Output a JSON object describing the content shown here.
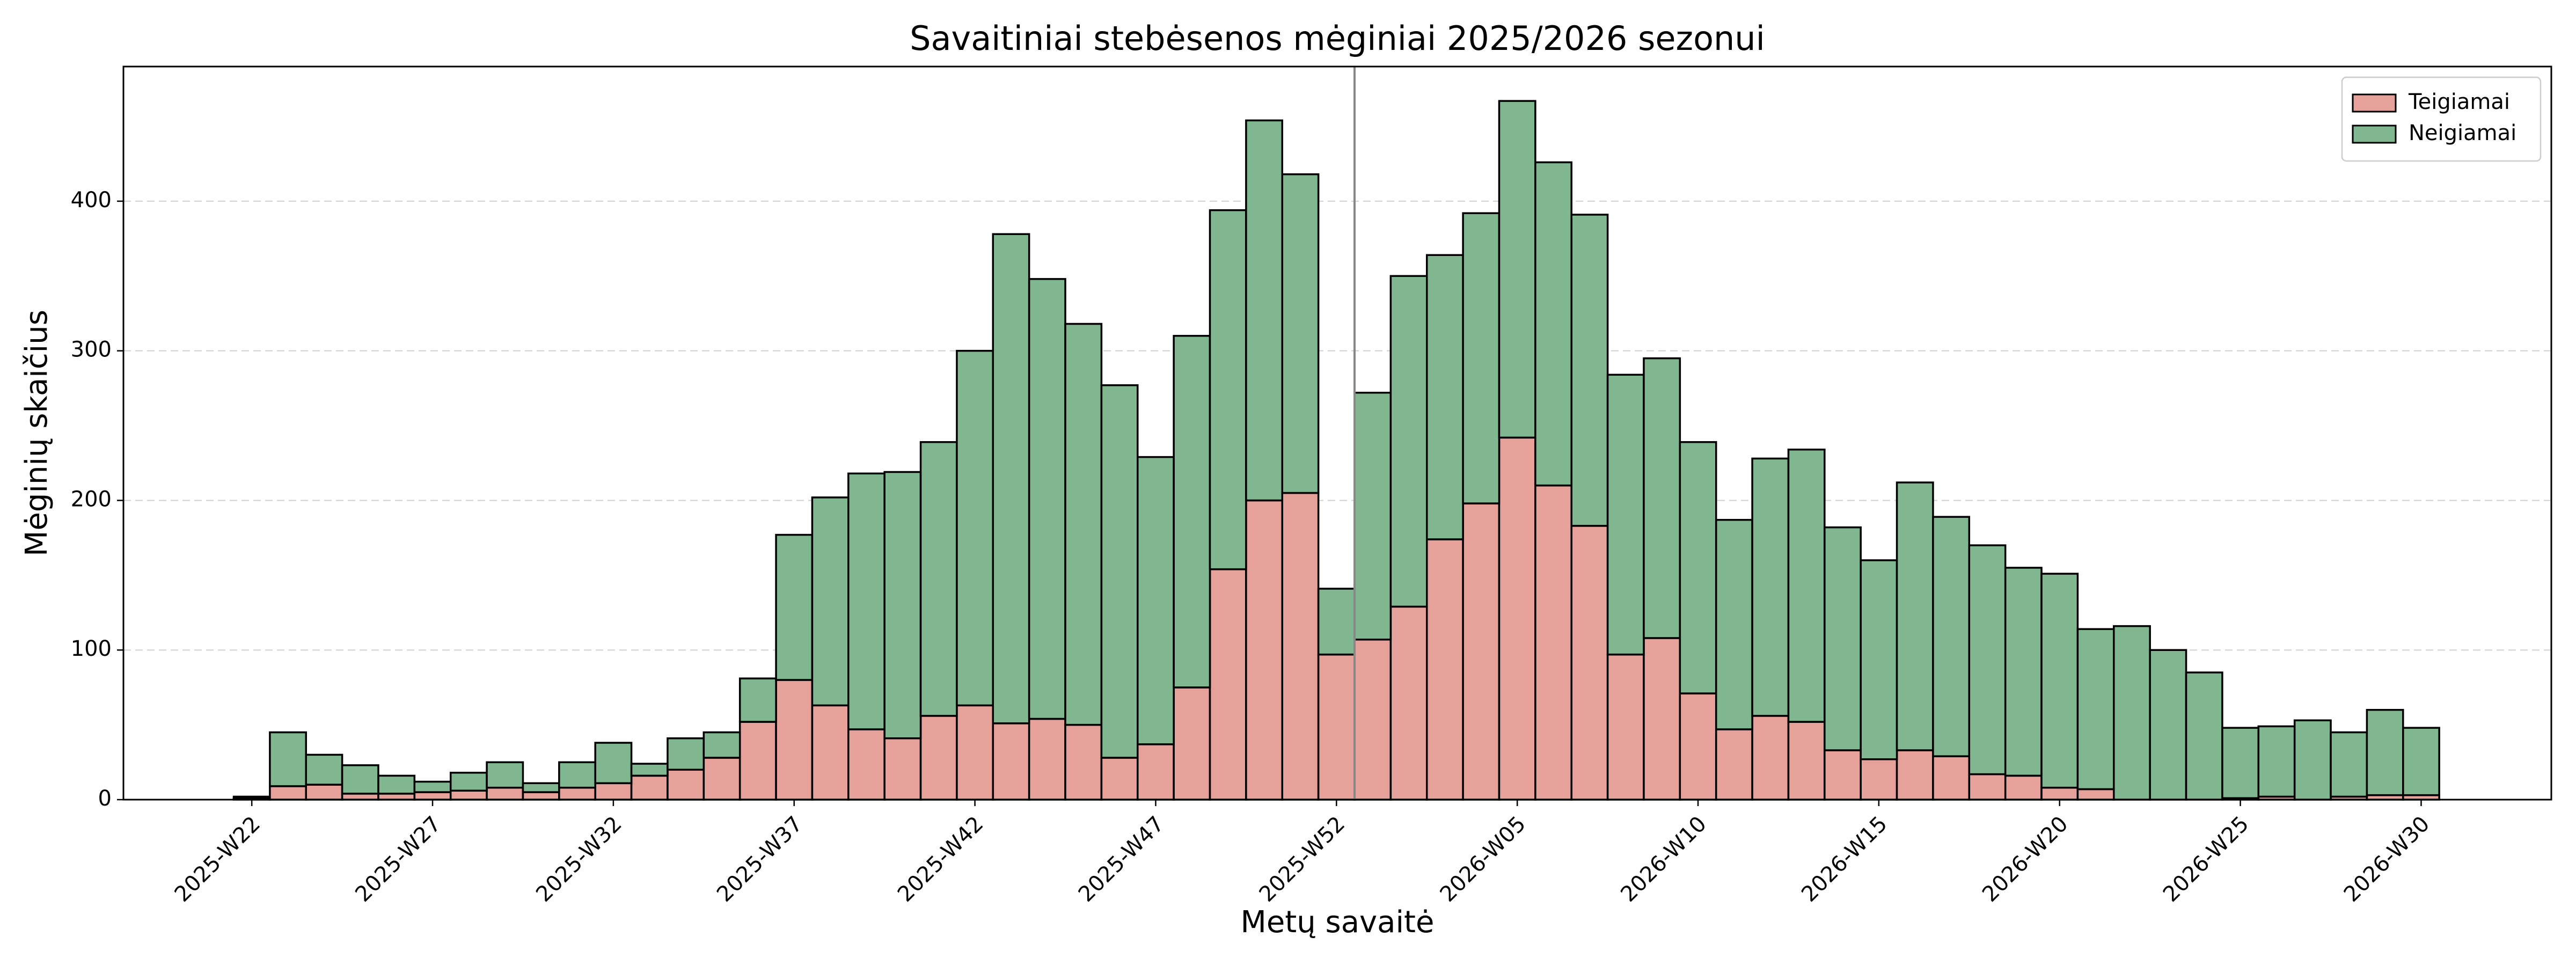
{
  "chart_data": {
    "type": "stacked_bar",
    "title": "Savaitiniai stebėsenos mėginiai 2025/2026 sezonui",
    "xlabel": "Metų savaitė",
    "ylabel": "Mėginių skaičius",
    "categories": [
      "2025-W22",
      null,
      null,
      null,
      null,
      "2025-W27",
      null,
      null,
      null,
      null,
      "2025-W32",
      null,
      null,
      null,
      null,
      "2025-W37",
      null,
      null,
      null,
      null,
      "2025-W42",
      null,
      null,
      null,
      null,
      "2025-W47",
      null,
      null,
      null,
      null,
      "2025-W52",
      null,
      null,
      null,
      null,
      "2026-W05",
      null,
      null,
      null,
      null,
      "2026-W10",
      null,
      null,
      null,
      null,
      "2026-W15",
      null,
      null,
      null,
      null,
      "2026-W20",
      null,
      null,
      null,
      null,
      "2026-W25",
      null,
      null,
      null,
      null,
      "2026-W30"
    ],
    "series": [
      {
        "name": "Teigiamai",
        "color": "#e6a19b",
        "values": [
          1,
          9,
          10,
          4,
          4,
          5,
          6,
          8,
          5,
          8,
          11,
          16,
          20,
          28,
          52,
          80,
          63,
          47,
          41,
          56,
          63,
          51,
          54,
          50,
          28,
          37,
          75,
          154,
          200,
          205,
          97,
          107,
          129,
          174,
          198,
          242,
          210,
          183,
          97,
          108,
          71,
          47,
          56,
          52,
          33,
          27,
          33,
          29,
          17,
          16,
          8,
          7,
          0,
          0,
          0,
          1,
          2,
          0,
          2,
          3,
          3
        ]
      },
      {
        "name": "Neigiamai",
        "color": "#80b790",
        "values": [
          1,
          36,
          20,
          19,
          12,
          7,
          12,
          17,
          6,
          17,
          27,
          8,
          21,
          17,
          29,
          97,
          139,
          171,
          178,
          183,
          237,
          327,
          294,
          268,
          249,
          192,
          235,
          240,
          254,
          213,
          44,
          165,
          221,
          190,
          194,
          225,
          216,
          208,
          187,
          187,
          168,
          140,
          172,
          182,
          149,
          133,
          179,
          160,
          153,
          139,
          143,
          107,
          116,
          100,
          85,
          47,
          47,
          53,
          43,
          57,
          45
        ]
      }
    ],
    "ylim": [
      0,
      490
    ],
    "yticks": [
      0,
      100,
      200,
      300,
      400
    ],
    "grid": true,
    "legend": "upper right"
  }
}
